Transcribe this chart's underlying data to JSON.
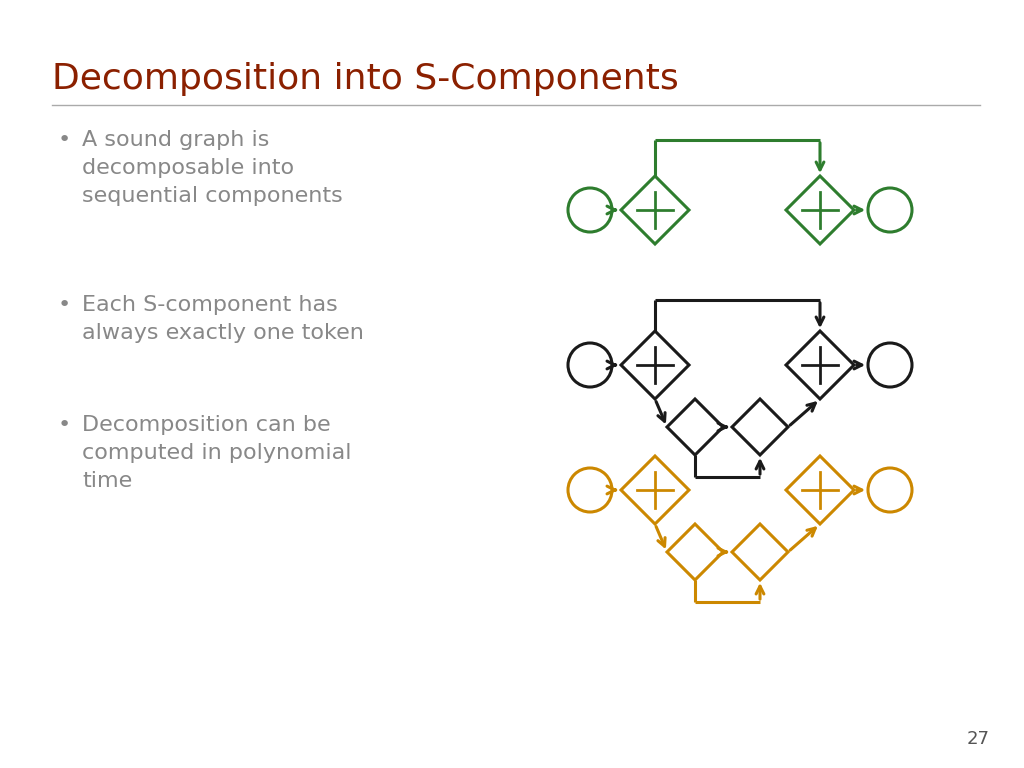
{
  "title": "Decomposition into S-Components",
  "title_color": "#8B2000",
  "bullet_color": "#888888",
  "bullets": [
    "A sound graph is\ndecomposable into\nsequential components",
    "Each S-component has\nalways exactly one token",
    "Decomposition can be\ncomputed in polynomial\ntime"
  ],
  "bg_color": "#ffffff",
  "slide_number": "27",
  "green_color": "#2E7D2E",
  "black_color": "#1a1a1a",
  "orange_color": "#CC8800",
  "line_color": "#aaaaaa"
}
